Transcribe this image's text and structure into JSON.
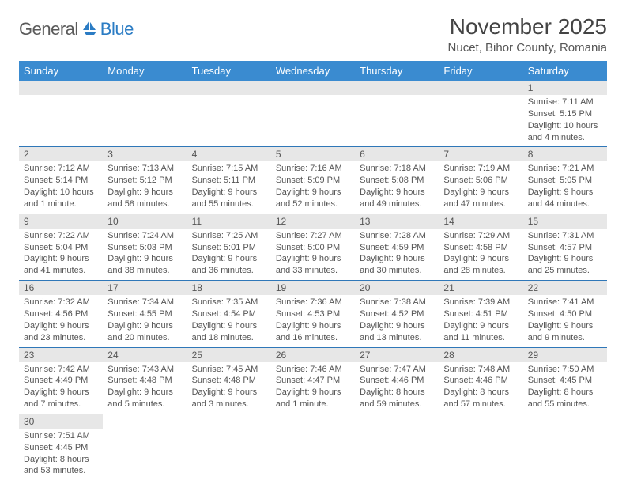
{
  "logo": {
    "part1": "General",
    "part2": "Blue"
  },
  "title": "November 2025",
  "location": "Nucet, Bihor County, Romania",
  "dayHeaders": [
    "Sunday",
    "Monday",
    "Tuesday",
    "Wednesday",
    "Thursday",
    "Friday",
    "Saturday"
  ],
  "colors": {
    "headerBg": "#3a8bd0",
    "rowBorder": "#2f77b8",
    "dayNumBg": "#e7e7e7",
    "logoBlue": "#2b7cc4",
    "logoDark": "#5a5a5a"
  },
  "weeks": [
    [
      null,
      null,
      null,
      null,
      null,
      null,
      {
        "n": "1",
        "sunrise": "7:11 AM",
        "sunset": "5:15 PM",
        "daylight": "10 hours and 4 minutes."
      }
    ],
    [
      {
        "n": "2",
        "sunrise": "7:12 AM",
        "sunset": "5:14 PM",
        "daylight": "10 hours and 1 minute."
      },
      {
        "n": "3",
        "sunrise": "7:13 AM",
        "sunset": "5:12 PM",
        "daylight": "9 hours and 58 minutes."
      },
      {
        "n": "4",
        "sunrise": "7:15 AM",
        "sunset": "5:11 PM",
        "daylight": "9 hours and 55 minutes."
      },
      {
        "n": "5",
        "sunrise": "7:16 AM",
        "sunset": "5:09 PM",
        "daylight": "9 hours and 52 minutes."
      },
      {
        "n": "6",
        "sunrise": "7:18 AM",
        "sunset": "5:08 PM",
        "daylight": "9 hours and 49 minutes."
      },
      {
        "n": "7",
        "sunrise": "7:19 AM",
        "sunset": "5:06 PM",
        "daylight": "9 hours and 47 minutes."
      },
      {
        "n": "8",
        "sunrise": "7:21 AM",
        "sunset": "5:05 PM",
        "daylight": "9 hours and 44 minutes."
      }
    ],
    [
      {
        "n": "9",
        "sunrise": "7:22 AM",
        "sunset": "5:04 PM",
        "daylight": "9 hours and 41 minutes."
      },
      {
        "n": "10",
        "sunrise": "7:24 AM",
        "sunset": "5:03 PM",
        "daylight": "9 hours and 38 minutes."
      },
      {
        "n": "11",
        "sunrise": "7:25 AM",
        "sunset": "5:01 PM",
        "daylight": "9 hours and 36 minutes."
      },
      {
        "n": "12",
        "sunrise": "7:27 AM",
        "sunset": "5:00 PM",
        "daylight": "9 hours and 33 minutes."
      },
      {
        "n": "13",
        "sunrise": "7:28 AM",
        "sunset": "4:59 PM",
        "daylight": "9 hours and 30 minutes."
      },
      {
        "n": "14",
        "sunrise": "7:29 AM",
        "sunset": "4:58 PM",
        "daylight": "9 hours and 28 minutes."
      },
      {
        "n": "15",
        "sunrise": "7:31 AM",
        "sunset": "4:57 PM",
        "daylight": "9 hours and 25 minutes."
      }
    ],
    [
      {
        "n": "16",
        "sunrise": "7:32 AM",
        "sunset": "4:56 PM",
        "daylight": "9 hours and 23 minutes."
      },
      {
        "n": "17",
        "sunrise": "7:34 AM",
        "sunset": "4:55 PM",
        "daylight": "9 hours and 20 minutes."
      },
      {
        "n": "18",
        "sunrise": "7:35 AM",
        "sunset": "4:54 PM",
        "daylight": "9 hours and 18 minutes."
      },
      {
        "n": "19",
        "sunrise": "7:36 AM",
        "sunset": "4:53 PM",
        "daylight": "9 hours and 16 minutes."
      },
      {
        "n": "20",
        "sunrise": "7:38 AM",
        "sunset": "4:52 PM",
        "daylight": "9 hours and 13 minutes."
      },
      {
        "n": "21",
        "sunrise": "7:39 AM",
        "sunset": "4:51 PM",
        "daylight": "9 hours and 11 minutes."
      },
      {
        "n": "22",
        "sunrise": "7:41 AM",
        "sunset": "4:50 PM",
        "daylight": "9 hours and 9 minutes."
      }
    ],
    [
      {
        "n": "23",
        "sunrise": "7:42 AM",
        "sunset": "4:49 PM",
        "daylight": "9 hours and 7 minutes."
      },
      {
        "n": "24",
        "sunrise": "7:43 AM",
        "sunset": "4:48 PM",
        "daylight": "9 hours and 5 minutes."
      },
      {
        "n": "25",
        "sunrise": "7:45 AM",
        "sunset": "4:48 PM",
        "daylight": "9 hours and 3 minutes."
      },
      {
        "n": "26",
        "sunrise": "7:46 AM",
        "sunset": "4:47 PM",
        "daylight": "9 hours and 1 minute."
      },
      {
        "n": "27",
        "sunrise": "7:47 AM",
        "sunset": "4:46 PM",
        "daylight": "8 hours and 59 minutes."
      },
      {
        "n": "28",
        "sunrise": "7:48 AM",
        "sunset": "4:46 PM",
        "daylight": "8 hours and 57 minutes."
      },
      {
        "n": "29",
        "sunrise": "7:50 AM",
        "sunset": "4:45 PM",
        "daylight": "8 hours and 55 minutes."
      }
    ],
    [
      {
        "n": "30",
        "sunrise": "7:51 AM",
        "sunset": "4:45 PM",
        "daylight": "8 hours and 53 minutes."
      },
      null,
      null,
      null,
      null,
      null,
      null
    ]
  ],
  "labels": {
    "sunrise": "Sunrise: ",
    "sunset": "Sunset: ",
    "daylight": "Daylight: "
  }
}
